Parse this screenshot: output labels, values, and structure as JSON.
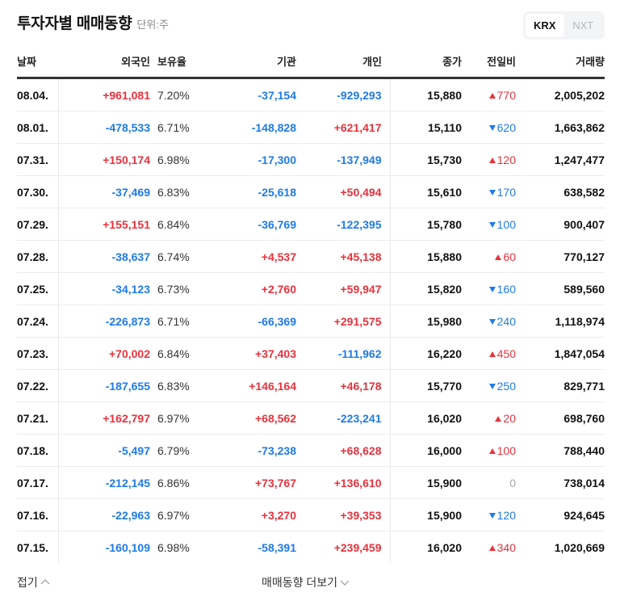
{
  "header": {
    "title": "투자자별 매매동향",
    "unit": "단위:주"
  },
  "market_toggle": {
    "options": [
      "KRX",
      "NXT"
    ],
    "selected": "KRX"
  },
  "table": {
    "columns": [
      "날짜",
      "외국인",
      "보유율",
      "기관",
      "개인",
      "종가",
      "전일비",
      "거래량"
    ],
    "rows": [
      {
        "date": "08.04.",
        "foreign": "+961,081",
        "holding": "7.20%",
        "institution": "-37,154",
        "individual": "-929,293",
        "close": "15,880",
        "change": "770",
        "change_dir": "up",
        "volume": "2,005,202"
      },
      {
        "date": "08.01.",
        "foreign": "-478,533",
        "holding": "6.71%",
        "institution": "-148,828",
        "individual": "+621,417",
        "close": "15,110",
        "change": "620",
        "change_dir": "down",
        "volume": "1,663,862"
      },
      {
        "date": "07.31.",
        "foreign": "+150,174",
        "holding": "6.98%",
        "institution": "-17,300",
        "individual": "-137,949",
        "close": "15,730",
        "change": "120",
        "change_dir": "up",
        "volume": "1,247,477"
      },
      {
        "date": "07.30.",
        "foreign": "-37,469",
        "holding": "6.83%",
        "institution": "-25,618",
        "individual": "+50,494",
        "close": "15,610",
        "change": "170",
        "change_dir": "down",
        "volume": "638,582"
      },
      {
        "date": "07.29.",
        "foreign": "+155,151",
        "holding": "6.84%",
        "institution": "-36,769",
        "individual": "-122,395",
        "close": "15,780",
        "change": "100",
        "change_dir": "down",
        "volume": "900,407"
      },
      {
        "date": "07.28.",
        "foreign": "-38,637",
        "holding": "6.74%",
        "institution": "+4,537",
        "individual": "+45,138",
        "close": "15,880",
        "change": "60",
        "change_dir": "up",
        "volume": "770,127"
      },
      {
        "date": "07.25.",
        "foreign": "-34,123",
        "holding": "6.73%",
        "institution": "+2,760",
        "individual": "+59,947",
        "close": "15,820",
        "change": "160",
        "change_dir": "down",
        "volume": "589,560"
      },
      {
        "date": "07.24.",
        "foreign": "-226,873",
        "holding": "6.71%",
        "institution": "-66,369",
        "individual": "+291,575",
        "close": "15,980",
        "change": "240",
        "change_dir": "down",
        "volume": "1,118,974"
      },
      {
        "date": "07.23.",
        "foreign": "+70,002",
        "holding": "6.84%",
        "institution": "+37,403",
        "individual": "-111,962",
        "close": "16,220",
        "change": "450",
        "change_dir": "up",
        "volume": "1,847,054"
      },
      {
        "date": "07.22.",
        "foreign": "-187,655",
        "holding": "6.83%",
        "institution": "+146,164",
        "individual": "+46,178",
        "close": "15,770",
        "change": "250",
        "change_dir": "down",
        "volume": "829,771"
      },
      {
        "date": "07.21.",
        "foreign": "+162,797",
        "holding": "6.97%",
        "institution": "+68,562",
        "individual": "-223,241",
        "close": "16,020",
        "change": "20",
        "change_dir": "up",
        "volume": "698,760"
      },
      {
        "date": "07.18.",
        "foreign": "-5,497",
        "holding": "6.79%",
        "institution": "-73,238",
        "individual": "+68,628",
        "close": "16,000",
        "change": "100",
        "change_dir": "up",
        "volume": "788,440"
      },
      {
        "date": "07.17.",
        "foreign": "-212,145",
        "holding": "6.86%",
        "institution": "+73,767",
        "individual": "+136,610",
        "close": "15,900",
        "change": "0",
        "change_dir": "flat",
        "volume": "738,014"
      },
      {
        "date": "07.16.",
        "foreign": "-22,963",
        "holding": "6.97%",
        "institution": "+3,270",
        "individual": "+39,353",
        "close": "15,900",
        "change": "120",
        "change_dir": "down",
        "volume": "924,645"
      },
      {
        "date": "07.15.",
        "foreign": "-160,109",
        "holding": "6.98%",
        "institution": "-58,391",
        "individual": "+239,459",
        "close": "16,020",
        "change": "340",
        "change_dir": "up",
        "volume": "1,020,669"
      }
    ]
  },
  "footer": {
    "collapse_label": "접기",
    "more_label": "매매동향 더보기"
  },
  "colors": {
    "up": "#e8323c",
    "down": "#1f7ae9",
    "flat": "#aaaaaa"
  }
}
